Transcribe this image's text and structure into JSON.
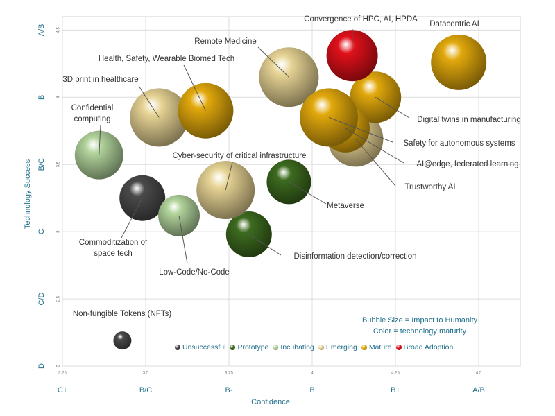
{
  "chart_data": {
    "type": "bubble",
    "x_label": "Confidence",
    "y_label": "Technology Success",
    "xlim": [
      3.25,
      4.625
    ],
    "ylim": [
      2,
      4.6
    ],
    "xticks": [
      3.25,
      3.5,
      3.75,
      4,
      4.25,
      4.5
    ],
    "yticks": [
      2,
      2.5,
      3,
      3.5,
      4,
      4.5
    ],
    "xgrades": [
      {
        "value": 3.25,
        "label": "C+"
      },
      {
        "value": 3.5,
        "label": "B/C"
      },
      {
        "value": 3.75,
        "label": "B-"
      },
      {
        "value": 4,
        "label": "B"
      },
      {
        "value": 4.25,
        "label": "B+"
      },
      {
        "value": 4.5,
        "label": "A/B"
      }
    ],
    "ygrades": [
      {
        "value": 2,
        "label": "D"
      },
      {
        "value": 2.5,
        "label": "C/D"
      },
      {
        "value": 3,
        "label": "C"
      },
      {
        "value": 3.5,
        "label": "B/C"
      },
      {
        "value": 4,
        "label": "B"
      },
      {
        "value": 4.5,
        "label": "A/B"
      }
    ],
    "grid": true,
    "annotations": [
      "Bubble Size = Impact to Humanity",
      "Color = technology maturity"
    ],
    "series": [
      {
        "name": "Unsuccessful",
        "color": "#4a4a4a",
        "labels": [
          "Commoditization of space tech",
          "Non-fungible Tokens (NFTs)"
        ],
        "x": [
          3.49,
          3.43
        ],
        "y": [
          3.25,
          2.19
        ],
        "sizes": [
          33,
          13
        ]
      },
      {
        "name": "Prototype",
        "color": "#3d6b1f",
        "labels": [
          "Metaverse",
          "Disinformation detection/correction"
        ],
        "x": [
          3.93,
          3.81
        ],
        "y": [
          3.37,
          2.98
        ],
        "sizes": [
          32,
          33
        ]
      },
      {
        "name": "Incubating",
        "color": "#b2d49c",
        "labels": [
          "Confidential computing",
          "Low-Code/No-Code"
        ],
        "x": [
          3.36,
          3.6
        ],
        "y": [
          3.57,
          3.12
        ],
        "sizes": [
          35,
          30
        ]
      },
      {
        "name": "Emerging",
        "color": "#e6d394",
        "labels": [
          "Remote Medicine",
          "3D print in healthcare",
          "Cyber-security of critical infrastructure",
          "Trustworthy AI"
        ],
        "x": [
          3.93,
          3.54,
          3.74,
          4.13
        ],
        "y": [
          4.15,
          3.85,
          3.31,
          3.69
        ],
        "sizes": [
          43,
          42,
          42,
          40
        ]
      },
      {
        "name": "Mature",
        "color": "#e2a90c",
        "labels": [
          "Datacentric AI",
          "Health, Safety, Wearable Biomed Tech",
          "Digital twins in manufacturing",
          "AI@edge, federated learning",
          "Safety for autonomous systems"
        ],
        "x": [
          4.44,
          3.68,
          4.19,
          4.1,
          4.05
        ],
        "y": [
          4.26,
          3.9,
          4.0,
          3.77,
          3.85
        ],
        "sizes": [
          40,
          40,
          37,
          35,
          42
        ]
      },
      {
        "name": "Broad Adoption",
        "color": "#e0101a",
        "labels": [
          "Convergence of HPC, AI, HPDA"
        ],
        "x": [
          4.12
        ],
        "y": [
          4.31
        ],
        "sizes": [
          37
        ]
      }
    ]
  }
}
